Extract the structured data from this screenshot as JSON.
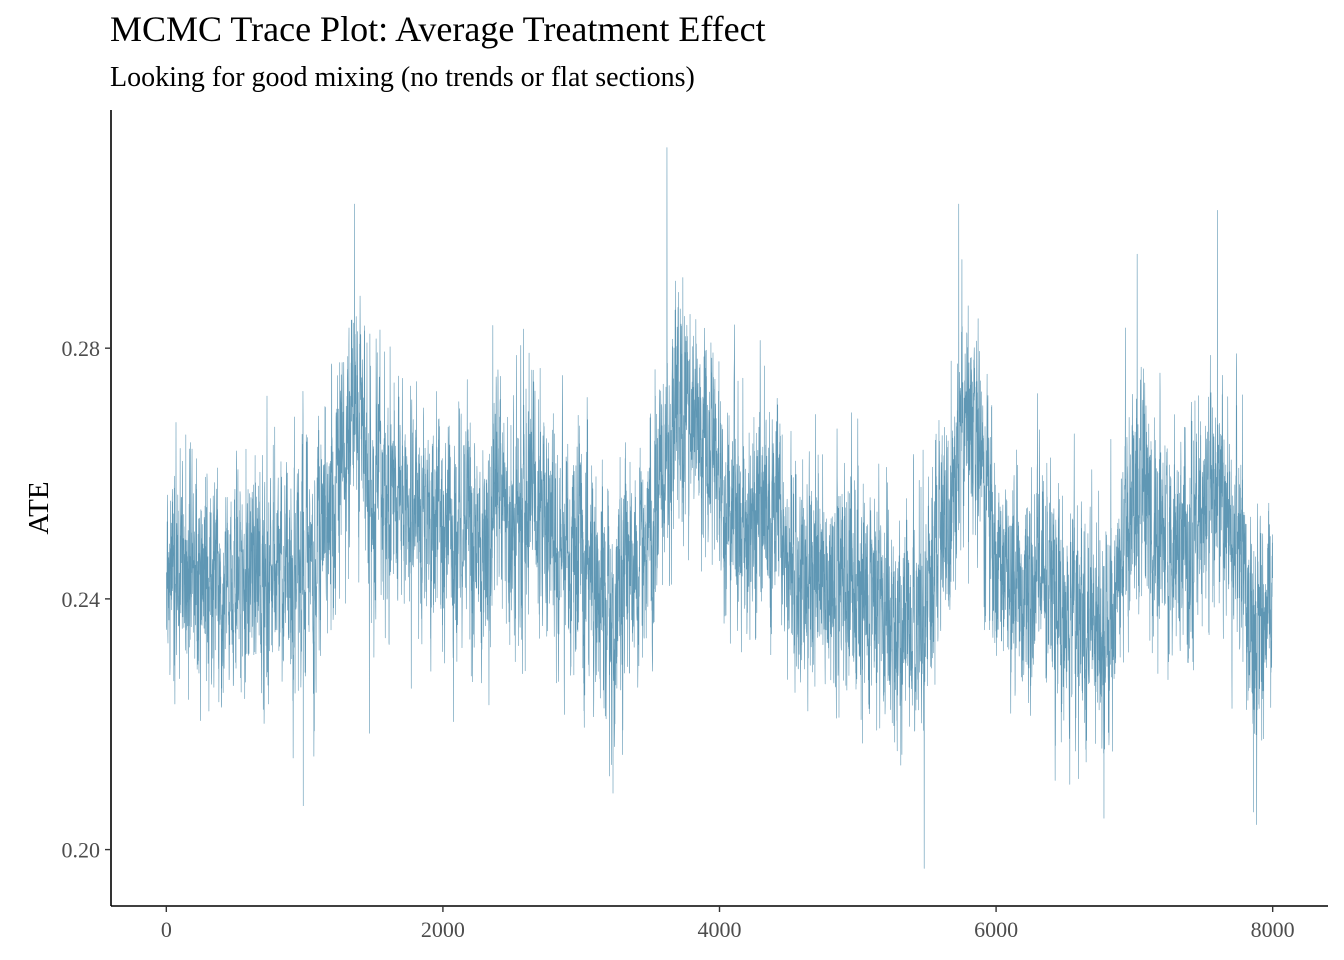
{
  "chart_data": {
    "type": "line",
    "title": "MCMC Trace Plot: Average Treatment Effect",
    "subtitle": "Looking for good mixing (no trends or flat sections)",
    "xlabel": "",
    "ylabel": "ATE",
    "xlim": [
      -400,
      8400
    ],
    "ylim": [
      0.191,
      0.318
    ],
    "x_ticks": [
      0,
      2000,
      4000,
      6000,
      8000
    ],
    "x_tick_labels": [
      "0",
      "2000",
      "4000",
      "6000",
      "8000"
    ],
    "y_ticks": [
      0.2,
      0.24,
      0.28
    ],
    "y_tick_labels": [
      "0.20",
      "0.24",
      "0.28"
    ],
    "grid": false,
    "legend": "none",
    "line_color": "#5f97b4",
    "series": [
      {
        "iterations": 8000,
        "x_start": 1,
        "x_end": 8000,
        "min": 0.197,
        "max": 0.312,
        "level_profile": {
          "x": [
            0,
            200,
            400,
            600,
            800,
            1000,
            1200,
            1300,
            1400,
            1500,
            1700,
            2000,
            2300,
            2600,
            2800,
            3000,
            3200,
            3400,
            3550,
            3700,
            3850,
            4000,
            4200,
            4400,
            4600,
            4800,
            5000,
            5200,
            5400,
            5500,
            5650,
            5750,
            5850,
            6000,
            6200,
            6400,
            6600,
            6800,
            6950,
            7050,
            7200,
            7400,
            7600,
            7700,
            7850,
            8000
          ],
          "y": [
            0.242,
            0.247,
            0.243,
            0.244,
            0.246,
            0.243,
            0.256,
            0.266,
            0.27,
            0.258,
            0.255,
            0.25,
            0.252,
            0.256,
            0.25,
            0.245,
            0.238,
            0.248,
            0.254,
            0.272,
            0.27,
            0.258,
            0.25,
            0.255,
            0.242,
            0.244,
            0.243,
            0.237,
            0.235,
            0.239,
            0.25,
            0.268,
            0.264,
            0.247,
            0.241,
            0.24,
            0.238,
            0.232,
            0.25,
            0.26,
            0.248,
            0.248,
            0.258,
            0.252,
            0.234,
            0.24
          ]
        },
        "extremes": [
          {
            "x": 1360,
            "y": 0.303
          },
          {
            "x": 3620,
            "y": 0.312
          },
          {
            "x": 5730,
            "y": 0.303
          },
          {
            "x": 7600,
            "y": 0.302
          },
          {
            "x": 7020,
            "y": 0.295
          },
          {
            "x": 5480,
            "y": 0.197
          },
          {
            "x": 990,
            "y": 0.207
          },
          {
            "x": 3230,
            "y": 0.209
          },
          {
            "x": 6780,
            "y": 0.205
          },
          {
            "x": 7860,
            "y": 0.206
          }
        ]
      }
    ]
  }
}
